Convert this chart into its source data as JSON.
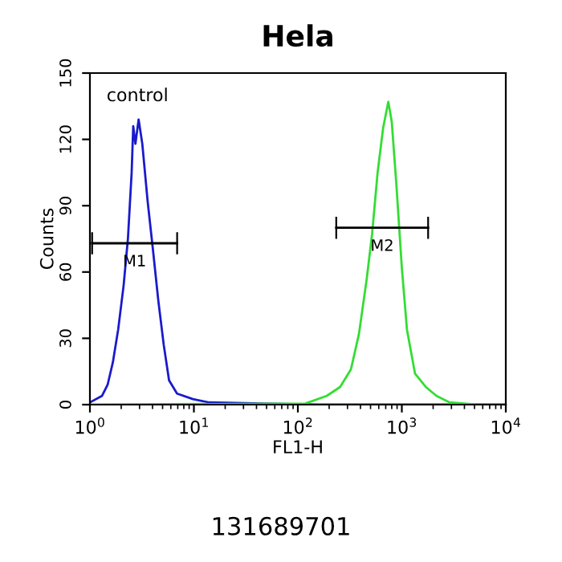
{
  "chart_data": {
    "type": "line",
    "title": "Hela",
    "xlabel": "FL1-H",
    "ylabel": "Counts",
    "log": "x",
    "xlim": [
      1,
      10000
    ],
    "xticks": [
      {
        "value": 1,
        "label": "10$^{0}$"
      },
      {
        "value": 10,
        "label": "10$^{1}$"
      },
      {
        "value": 100,
        "label": "10$^{2}$"
      },
      {
        "value": 1000,
        "label": "10$^{3}$"
      },
      {
        "value": 10000,
        "label": "10$^{4}$"
      }
    ],
    "ylim": [
      0,
      150
    ],
    "yticks": [
      0,
      30,
      60,
      90,
      120,
      150
    ],
    "grid": false,
    "legend": false,
    "marker": "none",
    "line_style": "solid",
    "series": [
      {
        "color": "#1a1acc",
        "x": [
          1.0,
          1.31,
          1.48,
          1.66,
          1.87,
          2.11,
          2.32,
          2.52,
          2.61,
          2.74,
          2.94,
          3.19,
          3.59,
          4.04,
          4.55,
          5.13,
          5.77,
          6.89,
          9.8,
          14,
          46,
          149,
          10000
        ],
        "values": [
          1,
          4,
          9,
          19,
          34,
          54,
          75,
          105,
          126,
          118,
          129,
          118,
          92,
          70,
          47,
          27,
          11,
          5,
          2.5,
          1,
          0.5,
          0,
          0
        ]
      },
      {
        "color": "#33dd33",
        "x": [
          1,
          118,
          190,
          255,
          324,
          387,
          460,
          517,
          585,
          660,
          741,
          800,
          885,
          1000,
          1120,
          1340,
          1700,
          2150,
          2880,
          5200,
          10000
        ],
        "values": [
          0,
          0.5,
          4,
          8,
          16,
          32,
          57,
          77,
          105,
          125,
          137,
          128,
          100,
          62,
          34,
          14,
          8,
          4,
          1,
          0,
          0
        ]
      },
      {
        "type": "line",
        "color": "#000000",
        "x": [
          1.05,
          6.9
        ],
        "values": [
          73,
          73
        ],
        "errors": [
          5,
          5
        ]
      },
      {
        "type": "line",
        "color": "#000000",
        "x": [
          234,
          1790
        ],
        "values": [
          80,
          80
        ],
        "errors": [
          5,
          5
        ]
      }
    ],
    "annotations": [
      "control",
      "131689701",
      {
        "text": "M1",
        "x": 2.69,
        "y": 73
      },
      {
        "text": "M2",
        "x": 647,
        "y": 80
      }
    ]
  }
}
